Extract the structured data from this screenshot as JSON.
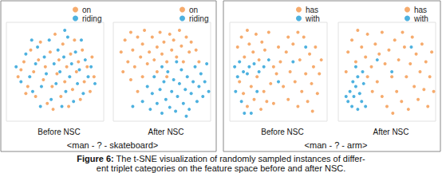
{
  "chart_data": [
    {
      "type": "scatter",
      "title": "Before NSC",
      "xlim": [
        0,
        100
      ],
      "ylim": [
        0,
        100
      ],
      "tick_labels": false,
      "series": [
        {
          "name": "on",
          "color": "#f5a25d",
          "values": [
            [
              12,
              45
            ],
            [
              18,
              60
            ],
            [
              22,
              35
            ],
            [
              25,
              72
            ],
            [
              28,
              50
            ],
            [
              30,
              25
            ],
            [
              33,
              62
            ],
            [
              35,
              80
            ],
            [
              38,
              42
            ],
            [
              40,
              55
            ],
            [
              42,
              18
            ],
            [
              45,
              70
            ],
            [
              47,
              35
            ],
            [
              50,
              88
            ],
            [
              52,
              48
            ],
            [
              54,
              62
            ],
            [
              56,
              25
            ],
            [
              58,
              78
            ],
            [
              60,
              40
            ],
            [
              62,
              55
            ],
            [
              64,
              15
            ],
            [
              66,
              68
            ],
            [
              68,
              32
            ],
            [
              70,
              82
            ],
            [
              72,
              50
            ],
            [
              74,
              60
            ],
            [
              76,
              22
            ],
            [
              78,
              72
            ],
            [
              80,
              40
            ],
            [
              83,
              55
            ],
            [
              86,
              30
            ],
            [
              88,
              65
            ],
            [
              90,
              45
            ],
            [
              20,
              28
            ],
            [
              48,
              12
            ],
            [
              15,
              52
            ]
          ]
        },
        {
          "name": "riding",
          "color": "#3aa8dc",
          "values": [
            [
              10,
              55
            ],
            [
              15,
              40
            ],
            [
              20,
              68
            ],
            [
              24,
              45
            ],
            [
              27,
              30
            ],
            [
              30,
              58
            ],
            [
              32,
              75
            ],
            [
              36,
              35
            ],
            [
              39,
              65
            ],
            [
              41,
              48
            ],
            [
              44,
              82
            ],
            [
              46,
              22
            ],
            [
              49,
              58
            ],
            [
              51,
              38
            ],
            [
              53,
              72
            ],
            [
              55,
              50
            ],
            [
              57,
              15
            ],
            [
              59,
              65
            ],
            [
              61,
              30
            ],
            [
              63,
              85
            ],
            [
              65,
              45
            ],
            [
              67,
              58
            ],
            [
              69,
              20
            ],
            [
              71,
              70
            ],
            [
              73,
              38
            ],
            [
              75,
              52
            ],
            [
              77,
              82
            ],
            [
              79,
              28
            ],
            [
              81,
              62
            ],
            [
              84,
              45
            ],
            [
              87,
              55
            ],
            [
              91,
              38
            ],
            [
              26,
              82
            ],
            [
              60,
              92
            ],
            [
              35,
              15
            ]
          ]
        }
      ]
    },
    {
      "type": "scatter",
      "title": "After NSC",
      "xlim": [
        0,
        100
      ],
      "ylim": [
        0,
        100
      ],
      "tick_labels": false,
      "series": [
        {
          "name": "on",
          "color": "#f5a25d",
          "values": [
            [
              8,
              70
            ],
            [
              12,
              82
            ],
            [
              15,
              60
            ],
            [
              18,
              90
            ],
            [
              20,
              72
            ],
            [
              22,
              55
            ],
            [
              25,
              85
            ],
            [
              28,
              65
            ],
            [
              30,
              78
            ],
            [
              32,
              92
            ],
            [
              35,
              58
            ],
            [
              37,
              70
            ],
            [
              40,
              85
            ],
            [
              42,
              62
            ],
            [
              45,
              75
            ],
            [
              48,
              90
            ],
            [
              50,
              68
            ],
            [
              52,
              80
            ],
            [
              55,
              60
            ],
            [
              58,
              88
            ],
            [
              60,
              72
            ],
            [
              62,
              82
            ],
            [
              65,
              65
            ],
            [
              68,
              92
            ],
            [
              70,
              76
            ],
            [
              72,
              60
            ],
            [
              75,
              85
            ],
            [
              78,
              70
            ],
            [
              80,
              80
            ],
            [
              85,
              72
            ],
            [
              10,
              50
            ],
            [
              18,
              42
            ],
            [
              30,
              45
            ],
            [
              45,
              50
            ],
            [
              88,
              60
            ],
            [
              25,
              30
            ],
            [
              55,
              45
            ]
          ]
        },
        {
          "name": "riding",
          "color": "#3aa8dc",
          "values": [
            [
              30,
              20
            ],
            [
              35,
              35
            ],
            [
              38,
              12
            ],
            [
              40,
              28
            ],
            [
              42,
              45
            ],
            [
              45,
              18
            ],
            [
              48,
              32
            ],
            [
              50,
              8
            ],
            [
              52,
              40
            ],
            [
              54,
              22
            ],
            [
              56,
              50
            ],
            [
              58,
              14
            ],
            [
              60,
              30
            ],
            [
              62,
              42
            ],
            [
              64,
              10
            ],
            [
              66,
              25
            ],
            [
              68,
              38
            ],
            [
              70,
              52
            ],
            [
              72,
              18
            ],
            [
              74,
              32
            ],
            [
              76,
              45
            ],
            [
              78,
              12
            ],
            [
              80,
              28
            ],
            [
              82,
              40
            ],
            [
              84,
              55
            ],
            [
              86,
              20
            ],
            [
              88,
              35
            ],
            [
              90,
              48
            ],
            [
              92,
              25
            ],
            [
              94,
              40
            ],
            [
              96,
              58
            ],
            [
              65,
              60
            ],
            [
              50,
              55
            ],
            [
              20,
              15
            ],
            [
              98,
              30
            ],
            [
              75,
              5
            ]
          ]
        }
      ]
    },
    {
      "type": "scatter",
      "title": "Before NSC",
      "xlim": [
        0,
        100
      ],
      "ylim": [
        0,
        100
      ],
      "tick_labels": false,
      "series": [
        {
          "name": "has",
          "color": "#f5a25d",
          "values": [
            [
              8,
              75
            ],
            [
              12,
              85
            ],
            [
              15,
              65
            ],
            [
              18,
              92
            ],
            [
              20,
              78
            ],
            [
              24,
              70
            ],
            [
              27,
              88
            ],
            [
              30,
              62
            ],
            [
              33,
              80
            ],
            [
              36,
              72
            ],
            [
              40,
              90
            ],
            [
              10,
              40
            ],
            [
              14,
              28
            ],
            [
              18,
              15
            ],
            [
              22,
              35
            ],
            [
              25,
              22
            ],
            [
              28,
              45
            ],
            [
              32,
              12
            ],
            [
              35,
              30
            ],
            [
              38,
              20
            ],
            [
              42,
              38
            ],
            [
              45,
              55
            ],
            [
              48,
              48
            ],
            [
              52,
              60
            ],
            [
              55,
              35
            ],
            [
              58,
              70
            ],
            [
              60,
              22
            ],
            [
              62,
              50
            ],
            [
              65,
              78
            ],
            [
              67,
              40
            ],
            [
              70,
              15
            ],
            [
              72,
              62
            ],
            [
              74,
              30
            ],
            [
              76,
              85
            ],
            [
              78,
              48
            ],
            [
              80,
              20
            ],
            [
              82,
              68
            ],
            [
              84,
              38
            ],
            [
              86,
              55
            ],
            [
              88,
              75
            ],
            [
              90,
              28
            ],
            [
              92,
              48
            ],
            [
              94,
              62
            ],
            [
              70,
              90
            ],
            [
              60,
              85
            ],
            [
              50,
              75
            ],
            [
              45,
              18
            ],
            [
              85,
              10
            ]
          ]
        },
        {
          "name": "with",
          "color": "#3aa8dc",
          "values": [
            [
              5,
              55
            ],
            [
              10,
              60
            ],
            [
              14,
              50
            ],
            [
              8,
              45
            ],
            [
              20,
              55
            ],
            [
              25,
              58
            ],
            [
              18,
              48
            ],
            [
              12,
              20
            ],
            [
              6,
              30
            ],
            [
              30,
              50
            ],
            [
              35,
              55
            ],
            [
              22,
              8
            ],
            [
              40,
              62
            ],
            [
              15,
              8
            ],
            [
              50,
              40
            ],
            [
              65,
              60
            ],
            [
              78,
              75
            ],
            [
              28,
              30
            ]
          ]
        }
      ]
    },
    {
      "type": "scatter",
      "title": "After NSC",
      "xlim": [
        0,
        100
      ],
      "ylim": [
        0,
        100
      ],
      "tick_labels": false,
      "series": [
        {
          "name": "has",
          "color": "#f5a25d",
          "values": [
            [
              10,
              70
            ],
            [
              14,
              82
            ],
            [
              18,
              60
            ],
            [
              20,
              92
            ],
            [
              24,
              75
            ],
            [
              28,
              65
            ],
            [
              30,
              88
            ],
            [
              34,
              55
            ],
            [
              38,
              78
            ],
            [
              42,
              68
            ],
            [
              45,
              90
            ],
            [
              48,
              58
            ],
            [
              52,
              72
            ],
            [
              55,
              45
            ],
            [
              58,
              82
            ],
            [
              60,
              30
            ],
            [
              62,
              62
            ],
            [
              65,
              20
            ],
            [
              68,
              75
            ],
            [
              70,
              45
            ],
            [
              72,
              12
            ],
            [
              74,
              58
            ],
            [
              76,
              85
            ],
            [
              78,
              35
            ],
            [
              80,
              68
            ],
            [
              82,
              22
            ],
            [
              84,
              50
            ],
            [
              86,
              78
            ],
            [
              88,
              32
            ],
            [
              90,
              60
            ],
            [
              92,
              15
            ],
            [
              94,
              45
            ],
            [
              96,
              70
            ],
            [
              40,
              40
            ],
            [
              35,
              30
            ],
            [
              45,
              25
            ],
            [
              50,
              15
            ],
            [
              30,
              45
            ],
            [
              66,
              90
            ],
            [
              56,
              8
            ],
            [
              98,
              30
            ],
            [
              8,
              50
            ]
          ]
        },
        {
          "name": "with",
          "color": "#3aa8dc",
          "values": [
            [
              10,
              20
            ],
            [
              12,
              30
            ],
            [
              14,
              15
            ],
            [
              16,
              25
            ],
            [
              18,
              35
            ],
            [
              20,
              12
            ],
            [
              22,
              28
            ],
            [
              24,
              20
            ],
            [
              26,
              38
            ],
            [
              15,
              40
            ],
            [
              20,
              45
            ],
            [
              25,
              50
            ],
            [
              18,
              55
            ],
            [
              8,
              25
            ],
            [
              28,
              15
            ],
            [
              40,
              62
            ],
            [
              55,
              50
            ],
            [
              75,
              75
            ]
          ]
        }
      ]
    }
  ],
  "figure": {
    "groups": [
      "<man - ? - skateboard>",
      "<man - ? - arm>"
    ],
    "caption_label": "Figure 6:",
    "caption_lines": [
      "The t-SNE visualization of randomly sampled instances of differ-",
      "ent triplet categories on the feature space before and after NSC."
    ]
  }
}
